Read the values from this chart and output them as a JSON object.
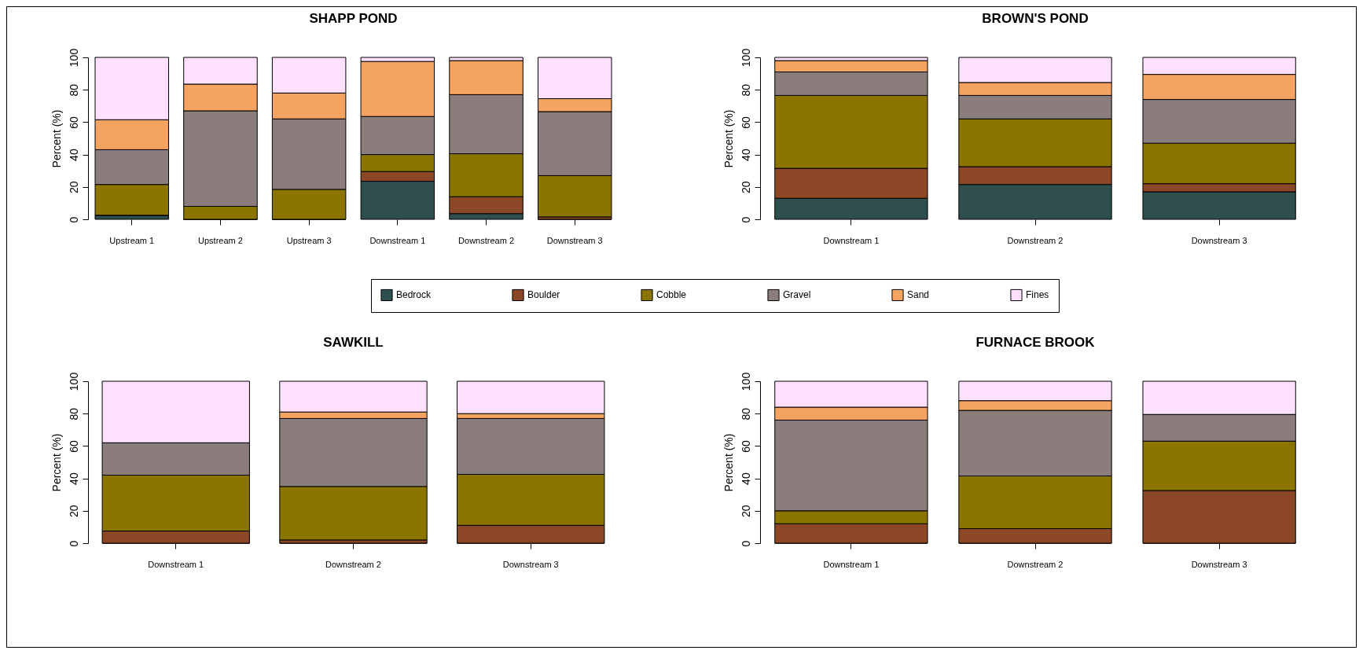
{
  "chart_data": [
    {
      "type": "bar",
      "title": "SHAPP POND",
      "ylabel": "Percent  (%)",
      "stacked": true,
      "legend": "bottom",
      "categories": [
        "Upstream 1",
        "Upstream 2",
        "Upstream 3",
        "Downstream 1",
        "Downstream 2",
        "Downstream 3"
      ],
      "ylim": [
        0,
        100
      ],
      "yticks": [
        0,
        20,
        40,
        60,
        80,
        100
      ],
      "series": [
        {
          "name": "Bedrock",
          "color": "#2f4f4f",
          "values": [
            2.5,
            0,
            0,
            23.5,
            3.5,
            0
          ]
        },
        {
          "name": "Boulder",
          "color": "#8b4726",
          "values": [
            0,
            0,
            0,
            6,
            10.5,
            1.5
          ]
        },
        {
          "name": "Cobble",
          "color": "#8b7500",
          "values": [
            19,
            8,
            18.5,
            10.5,
            26.5,
            25.5
          ]
        },
        {
          "name": "Gravel",
          "color": "#8b7d7b",
          "values": [
            21.5,
            59,
            43.5,
            23.5,
            36.5,
            39.5
          ]
        },
        {
          "name": "Sand",
          "color": "#f4a460",
          "values": [
            18.5,
            16.5,
            16,
            34,
            21,
            8
          ]
        },
        {
          "name": "Fines",
          "color": "#ffe1ff",
          "values": [
            38.5,
            16.5,
            22,
            2.5,
            2,
            25.5
          ]
        }
      ]
    },
    {
      "type": "bar",
      "title": "BROWN'S POND",
      "ylabel": "Percent  (%)",
      "stacked": true,
      "categories": [
        "Downstream 1",
        "Downstream 2",
        "Downstream 3"
      ],
      "ylim": [
        0,
        100
      ],
      "yticks": [
        0,
        20,
        40,
        60,
        80,
        100
      ],
      "series": [
        {
          "color": "#2f4f4f",
          "values": [
            13,
            21.5,
            17
          ]
        },
        {
          "color": "#8b4726",
          "values": [
            18.5,
            11,
            5
          ]
        },
        {
          "color": "#8b7500",
          "values": [
            45,
            29.5,
            25
          ]
        },
        {
          "color": "#8b7d7b",
          "values": [
            14.5,
            14.5,
            27
          ]
        },
        {
          "color": "#f4a460",
          "values": [
            7,
            8,
            15.5
          ]
        },
        {
          "color": "#ffe1ff",
          "values": [
            2,
            15.5,
            10.5
          ]
        }
      ]
    },
    {
      "type": "bar",
      "title": "SAWKILL",
      "ylabel": "Percent  (%)",
      "stacked": true,
      "categories": [
        "Downstream 1",
        "Downstream 2",
        "Downstream 3"
      ],
      "ylim": [
        0,
        100
      ],
      "yticks": [
        0,
        20,
        40,
        60,
        80,
        100
      ],
      "series": [
        {
          "color": "#2f4f4f",
          "values": [
            0,
            0,
            0
          ]
        },
        {
          "color": "#8b4726",
          "values": [
            7.5,
            2,
            11
          ]
        },
        {
          "color": "#8b7500",
          "values": [
            34.5,
            33,
            31.5
          ]
        },
        {
          "color": "#8b7d7b",
          "values": [
            20,
            42,
            34.5
          ]
        },
        {
          "color": "#f4a460",
          "values": [
            0,
            4,
            3
          ]
        },
        {
          "color": "#ffe1ff",
          "values": [
            38,
            19,
            20
          ]
        }
      ]
    },
    {
      "type": "bar",
      "title": "FURNACE BROOK",
      "ylabel": "Percent  (%)",
      "stacked": true,
      "categories": [
        "Downstream 1",
        "Downstream 2",
        "Downstream 3"
      ],
      "ylim": [
        0,
        100
      ],
      "yticks": [
        0,
        20,
        40,
        60,
        80,
        100
      ],
      "series": [
        {
          "color": "#2f4f4f",
          "values": [
            0,
            0,
            0
          ]
        },
        {
          "color": "#8b4726",
          "values": [
            12,
            9,
            32.5
          ]
        },
        {
          "color": "#8b7500",
          "values": [
            8,
            32.5,
            30.5
          ]
        },
        {
          "color": "#8b7d7b",
          "values": [
            56,
            40.5,
            16.5
          ]
        },
        {
          "color": "#f4a460",
          "values": [
            8,
            6,
            0
          ]
        },
        {
          "color": "#ffe1ff",
          "values": [
            16,
            12,
            20.5
          ]
        }
      ]
    }
  ]
}
